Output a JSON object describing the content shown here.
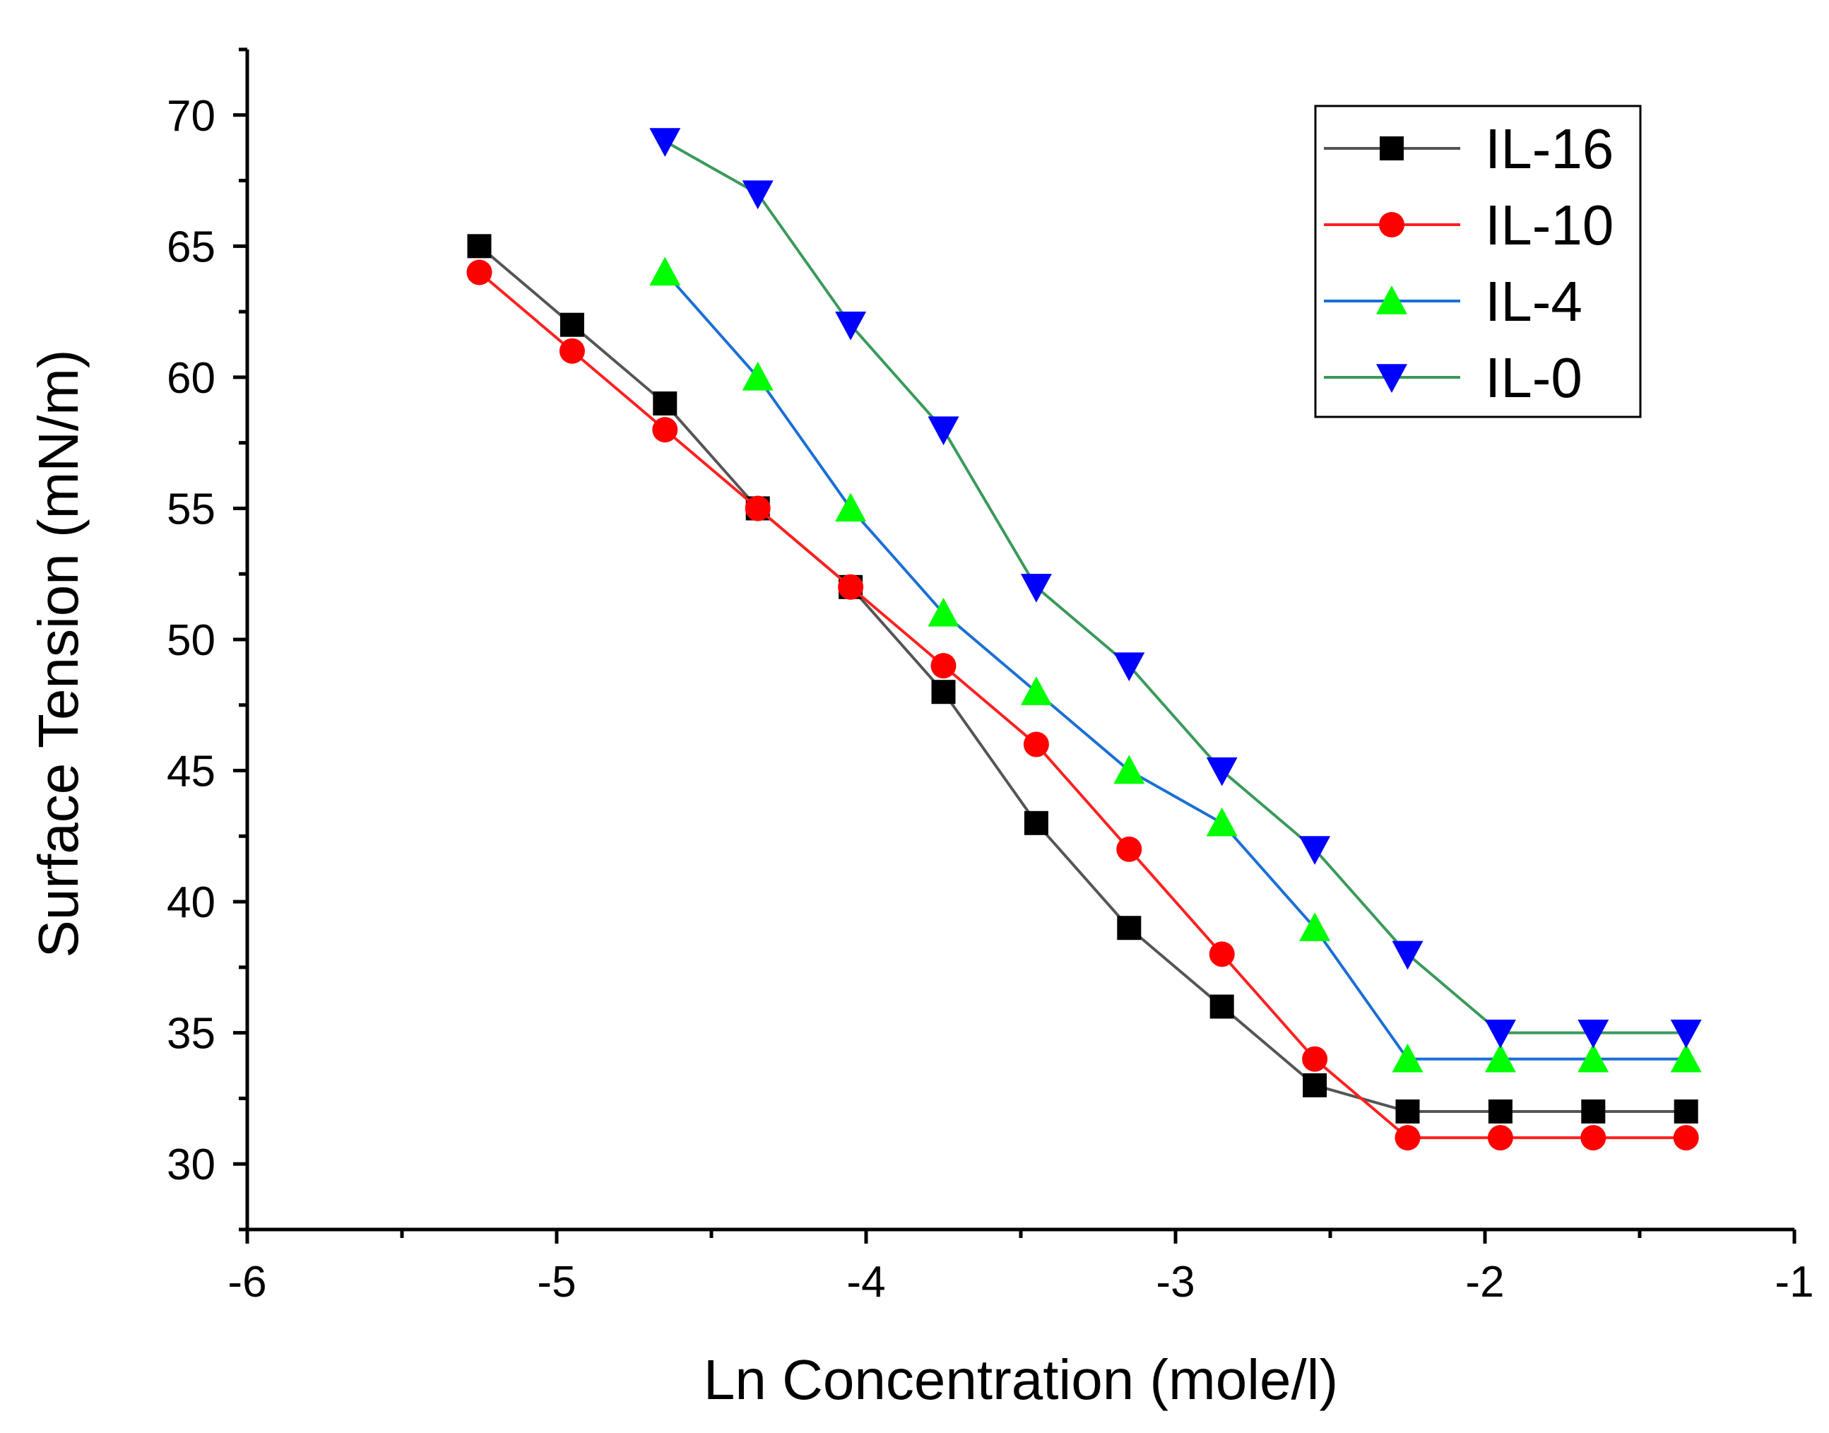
{
  "chart_data": {
    "type": "line",
    "title": "",
    "xlabel": "Ln Concentration (mole/l)",
    "ylabel": "Surface Tension (mN/m)",
    "xlim": [
      -6,
      -1
    ],
    "ylim": [
      27.5,
      72.5
    ],
    "x_ticks": [
      -6,
      -5,
      -4,
      -3,
      -2,
      -1
    ],
    "x_tick_labels": [
      "-6",
      "-5",
      "-4",
      "-3",
      "-2",
      "-1"
    ],
    "y_ticks": [
      30,
      35,
      40,
      45,
      50,
      55,
      60,
      65,
      70
    ],
    "y_tick_labels": [
      "30",
      "35",
      "40",
      "45",
      "50",
      "55",
      "60",
      "65",
      "70"
    ],
    "legend_position": "top-right",
    "series": [
      {
        "name": "IL-16",
        "line_color": "#555555",
        "marker_color": "#000000",
        "marker": "square",
        "x": [
          -5.25,
          -4.95,
          -4.65,
          -4.35,
          -4.05,
          -3.75,
          -3.45,
          -3.15,
          -2.85,
          -2.55,
          -2.25,
          -1.95,
          -1.65,
          -1.35
        ],
        "values": [
          65,
          62,
          59,
          55,
          52,
          48,
          43,
          39,
          36,
          33,
          32,
          32,
          32,
          32
        ]
      },
      {
        "name": "IL-10",
        "line_color": "#ff2020",
        "marker_color": "#ff0000",
        "marker": "circle",
        "x": [
          -5.25,
          -4.95,
          -4.65,
          -4.35,
          -4.05,
          -3.75,
          -3.45,
          -3.15,
          -2.85,
          -2.55,
          -2.25,
          -1.95,
          -1.65,
          -1.35
        ],
        "values": [
          64,
          61,
          58,
          55,
          52,
          49,
          46,
          42,
          38,
          34,
          31,
          31,
          31,
          31
        ]
      },
      {
        "name": "IL-4",
        "line_color": "#1a6fd6",
        "marker_color": "#00ff00",
        "marker": "triangle-up",
        "x": [
          -4.65,
          -4.35,
          -4.05,
          -3.75,
          -3.45,
          -3.15,
          -2.85,
          -2.55,
          -2.25,
          -1.95,
          -1.65,
          -1.35
        ],
        "values": [
          64,
          60,
          55,
          51,
          48,
          45,
          43,
          39,
          34,
          34,
          34,
          34
        ]
      },
      {
        "name": "IL-0",
        "line_color": "#3a9a5a",
        "marker_color": "#0000ff",
        "marker": "triangle-down",
        "x": [
          -4.65,
          -4.35,
          -4.05,
          -3.75,
          -3.45,
          -3.15,
          -2.85,
          -2.55,
          -2.25,
          -1.95,
          -1.65,
          -1.35
        ],
        "values": [
          69,
          67,
          62,
          58,
          52,
          49,
          45,
          42,
          38,
          35,
          35,
          35
        ]
      }
    ]
  }
}
